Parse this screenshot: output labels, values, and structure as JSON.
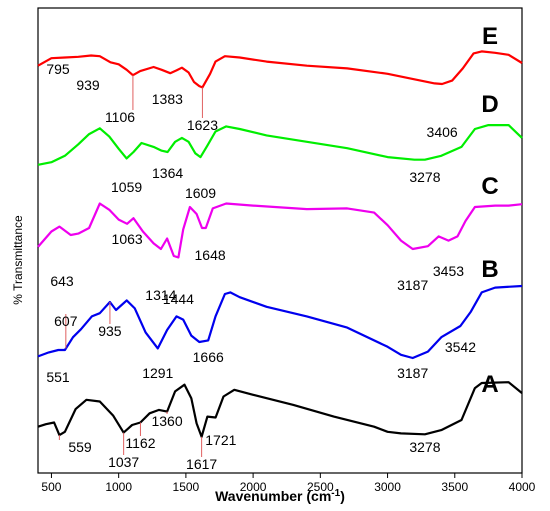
{
  "chart_data": {
    "type": "line",
    "xlabel": "Wavenumber (cm",
    "xlabel_sup": "-1",
    "xlabel_end": ")",
    "ylabel": "% Transmittance",
    "xlim": [
      400,
      4000
    ],
    "xticks": [
      500,
      1000,
      1500,
      2000,
      2500,
      3000,
      3500,
      4000
    ],
    "grid": false,
    "series": [
      {
        "name": "E",
        "color": "#ff0000",
        "points": [
          [
            400,
            0.74
          ],
          [
            500,
            0.85
          ],
          [
            600,
            0.86
          ],
          [
            700,
            0.87
          ],
          [
            795,
            0.89
          ],
          [
            860,
            0.88
          ],
          [
            939,
            0.79
          ],
          [
            1000,
            0.76
          ],
          [
            1060,
            0.68
          ],
          [
            1106,
            0.6
          ],
          [
            1160,
            0.66
          ],
          [
            1260,
            0.72
          ],
          [
            1320,
            0.68
          ],
          [
            1383,
            0.63
          ],
          [
            1430,
            0.67
          ],
          [
            1470,
            0.71
          ],
          [
            1520,
            0.64
          ],
          [
            1560,
            0.5
          ],
          [
            1600,
            0.44
          ],
          [
            1623,
            0.42
          ],
          [
            1680,
            0.62
          ],
          [
            1720,
            0.8
          ],
          [
            1790,
            0.88
          ],
          [
            1900,
            0.86
          ],
          [
            2100,
            0.8
          ],
          [
            2400,
            0.74
          ],
          [
            2700,
            0.7
          ],
          [
            3000,
            0.62
          ],
          [
            3200,
            0.54
          ],
          [
            3350,
            0.48
          ],
          [
            3406,
            0.47
          ],
          [
            3480,
            0.52
          ],
          [
            3560,
            0.7
          ],
          [
            3640,
            0.92
          ],
          [
            3700,
            0.95
          ],
          [
            3800,
            0.93
          ],
          [
            3900,
            0.9
          ],
          [
            4000,
            0.78
          ]
        ]
      },
      {
        "name": "D",
        "color": "#00ee00",
        "points": [
          [
            400,
            0.3
          ],
          [
            500,
            0.34
          ],
          [
            600,
            0.44
          ],
          [
            700,
            0.62
          ],
          [
            780,
            0.78
          ],
          [
            860,
            0.87
          ],
          [
            930,
            0.74
          ],
          [
            1000,
            0.55
          ],
          [
            1059,
            0.4
          ],
          [
            1110,
            0.5
          ],
          [
            1170,
            0.64
          ],
          [
            1260,
            0.58
          ],
          [
            1320,
            0.52
          ],
          [
            1364,
            0.5
          ],
          [
            1420,
            0.66
          ],
          [
            1470,
            0.72
          ],
          [
            1520,
            0.66
          ],
          [
            1570,
            0.48
          ],
          [
            1609,
            0.42
          ],
          [
            1660,
            0.6
          ],
          [
            1720,
            0.82
          ],
          [
            1800,
            0.9
          ],
          [
            1900,
            0.86
          ],
          [
            2100,
            0.76
          ],
          [
            2400,
            0.66
          ],
          [
            2700,
            0.56
          ],
          [
            3000,
            0.42
          ],
          [
            3200,
            0.38
          ],
          [
            3278,
            0.38
          ],
          [
            3400,
            0.44
          ],
          [
            3550,
            0.58
          ],
          [
            3650,
            0.86
          ],
          [
            3750,
            0.92
          ],
          [
            3900,
            0.92
          ],
          [
            4000,
            0.72
          ]
        ]
      },
      {
        "name": "C",
        "color": "#ee00ee",
        "points": [
          [
            400,
            0.33
          ],
          [
            500,
            0.55
          ],
          [
            560,
            0.62
          ],
          [
            643,
            0.5
          ],
          [
            700,
            0.52
          ],
          [
            780,
            0.6
          ],
          [
            860,
            0.95
          ],
          [
            930,
            0.86
          ],
          [
            1000,
            0.72
          ],
          [
            1063,
            0.66
          ],
          [
            1110,
            0.74
          ],
          [
            1180,
            0.55
          ],
          [
            1260,
            0.38
          ],
          [
            1314,
            0.3
          ],
          [
            1360,
            0.45
          ],
          [
            1410,
            0.2
          ],
          [
            1444,
            0.18
          ],
          [
            1480,
            0.58
          ],
          [
            1530,
            0.9
          ],
          [
            1580,
            0.8
          ],
          [
            1620,
            0.6
          ],
          [
            1648,
            0.6
          ],
          [
            1700,
            0.88
          ],
          [
            1800,
            0.95
          ],
          [
            2000,
            0.92
          ],
          [
            2400,
            0.87
          ],
          [
            2700,
            0.88
          ],
          [
            2900,
            0.82
          ],
          [
            3000,
            0.64
          ],
          [
            3100,
            0.42
          ],
          [
            3187,
            0.3
          ],
          [
            3300,
            0.34
          ],
          [
            3380,
            0.48
          ],
          [
            3453,
            0.42
          ],
          [
            3520,
            0.48
          ],
          [
            3580,
            0.7
          ],
          [
            3650,
            0.9
          ],
          [
            3800,
            0.92
          ],
          [
            3900,
            0.92
          ],
          [
            4000,
            0.94
          ]
        ]
      },
      {
        "name": "B",
        "color": "#0000ee",
        "points": [
          [
            400,
            0.12
          ],
          [
            480,
            0.17
          ],
          [
            551,
            0.2
          ],
          [
            600,
            0.2
          ],
          [
            660,
            0.36
          ],
          [
            720,
            0.46
          ],
          [
            800,
            0.62
          ],
          [
            860,
            0.66
          ],
          [
            935,
            0.8
          ],
          [
            980,
            0.7
          ],
          [
            1060,
            0.82
          ],
          [
            1120,
            0.72
          ],
          [
            1200,
            0.42
          ],
          [
            1291,
            0.22
          ],
          [
            1360,
            0.45
          ],
          [
            1430,
            0.62
          ],
          [
            1480,
            0.58
          ],
          [
            1540,
            0.38
          ],
          [
            1600,
            0.3
          ],
          [
            1666,
            0.32
          ],
          [
            1720,
            0.62
          ],
          [
            1790,
            0.9
          ],
          [
            1830,
            0.92
          ],
          [
            1900,
            0.86
          ],
          [
            2100,
            0.74
          ],
          [
            2400,
            0.62
          ],
          [
            2700,
            0.48
          ],
          [
            3000,
            0.24
          ],
          [
            3100,
            0.14
          ],
          [
            3187,
            0.1
          ],
          [
            3300,
            0.18
          ],
          [
            3400,
            0.36
          ],
          [
            3542,
            0.5
          ],
          [
            3620,
            0.68
          ],
          [
            3700,
            0.92
          ],
          [
            3800,
            0.98
          ],
          [
            4000,
            1.0
          ]
        ]
      },
      {
        "name": "A",
        "color": "#000000",
        "points": [
          [
            400,
            0.42
          ],
          [
            459,
            0.45
          ],
          [
            520,
            0.47
          ],
          [
            559,
            0.32
          ],
          [
            600,
            0.36
          ],
          [
            680,
            0.63
          ],
          [
            760,
            0.74
          ],
          [
            860,
            0.72
          ],
          [
            960,
            0.55
          ],
          [
            1037,
            0.35
          ],
          [
            1100,
            0.44
          ],
          [
            1162,
            0.47
          ],
          [
            1230,
            0.58
          ],
          [
            1300,
            0.62
          ],
          [
            1360,
            0.6
          ],
          [
            1420,
            0.84
          ],
          [
            1490,
            0.92
          ],
          [
            1540,
            0.76
          ],
          [
            1580,
            0.46
          ],
          [
            1617,
            0.3
          ],
          [
            1660,
            0.54
          ],
          [
            1721,
            0.53
          ],
          [
            1780,
            0.78
          ],
          [
            1860,
            0.86
          ],
          [
            2000,
            0.8
          ],
          [
            2300,
            0.68
          ],
          [
            2600,
            0.54
          ],
          [
            2900,
            0.42
          ],
          [
            3000,
            0.36
          ],
          [
            3100,
            0.34
          ],
          [
            3278,
            0.33
          ],
          [
            3400,
            0.38
          ],
          [
            3550,
            0.5
          ],
          [
            3650,
            0.88
          ],
          [
            3700,
            0.94
          ],
          [
            3900,
            0.95
          ],
          [
            4000,
            0.82
          ]
        ]
      }
    ],
    "trace_labels": [
      "E",
      "D",
      "C",
      "B",
      "A"
    ],
    "annotations": [
      {
        "text": "795",
        "series": "E",
        "x": 795
      },
      {
        "text": "939",
        "series": "E",
        "x": 939
      },
      {
        "text": "1106",
        "series": "E",
        "x": 1106,
        "marker": true
      },
      {
        "text": "1383",
        "series": "E",
        "x": 1383
      },
      {
        "text": "1623",
        "series": "E",
        "x": 1623,
        "marker": true
      },
      {
        "text": "3406",
        "series": "E",
        "x": 3406
      },
      {
        "text": "1059",
        "series": "D",
        "x": 1059
      },
      {
        "text": "1364",
        "series": "D",
        "x": 1364
      },
      {
        "text": "1609",
        "series": "D",
        "x": 1609
      },
      {
        "text": "3278",
        "series": "D",
        "x": 3278
      },
      {
        "text": "643",
        "series": "C",
        "x": 643
      },
      {
        "text": "1063",
        "series": "C",
        "x": 1063
      },
      {
        "text": "1314",
        "series": "C",
        "x": 1314
      },
      {
        "text": "1444",
        "series": "C",
        "x": 1444
      },
      {
        "text": "1648",
        "series": "C",
        "x": 1648
      },
      {
        "text": "3187",
        "series": "C",
        "x": 3187
      },
      {
        "text": "3453",
        "series": "C",
        "x": 3453
      },
      {
        "text": "551",
        "series": "B",
        "x": 551
      },
      {
        "text": "607",
        "series": "B",
        "x": 607,
        "marker": true
      },
      {
        "text": "935",
        "series": "B",
        "x": 935,
        "marker": true
      },
      {
        "text": "1291",
        "series": "B",
        "x": 1291
      },
      {
        "text": "1666",
        "series": "B",
        "x": 1666
      },
      {
        "text": "3187",
        "series": "B",
        "x": 3187
      },
      {
        "text": "3542",
        "series": "B",
        "x": 3542
      },
      {
        "text": "559",
        "series": "A",
        "x": 559,
        "marker": true
      },
      {
        "text": "1037",
        "series": "A",
        "x": 1037,
        "marker": true
      },
      {
        "text": "1162",
        "series": "A",
        "x": 1162,
        "marker": true
      },
      {
        "text": "1360",
        "series": "A",
        "x": 1360,
        "marker": true
      },
      {
        "text": "1617",
        "series": "A",
        "x": 1617,
        "marker": true
      },
      {
        "text": "1721",
        "series": "A",
        "x": 1721
      },
      {
        "text": "3278",
        "series": "A",
        "x": 3278
      }
    ]
  }
}
